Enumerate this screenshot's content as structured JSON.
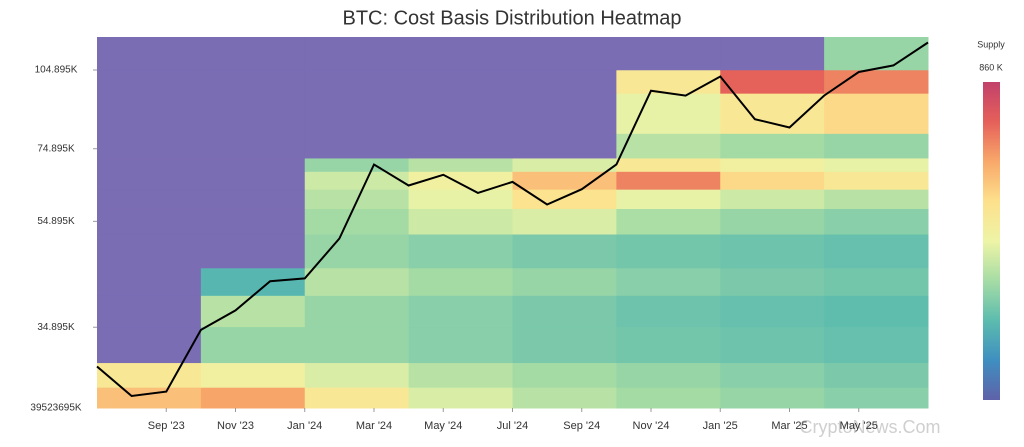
{
  "chart_data": {
    "type": "heatmap",
    "title": "BTC: Cost Basis Distribution Heatmap",
    "log_y": true,
    "xlim": [
      "2023-07",
      "2025-07"
    ],
    "ylim": [
      24700,
      120800
    ],
    "yticks": [
      {
        "value": 34895,
        "label": "34.895K"
      },
      {
        "value": 54895,
        "label": "54.895K"
      },
      {
        "value": 74895,
        "label": "74.895K"
      },
      {
        "value": 104895,
        "label": "104.895K"
      }
    ],
    "y_bottom_label": "39523695K",
    "xticks": [
      {
        "value": "2023-09",
        "label": "Sep '23"
      },
      {
        "value": "2023-11",
        "label": "Nov '23"
      },
      {
        "value": "2024-01",
        "label": "Jan '24"
      },
      {
        "value": "2024-03",
        "label": "Mar '24"
      },
      {
        "value": "2024-05",
        "label": "May '24"
      },
      {
        "value": "2024-07",
        "label": "Jul '24"
      },
      {
        "value": "2024-09",
        "label": "Sep '24"
      },
      {
        "value": "2024-11",
        "label": "Nov '24"
      },
      {
        "value": "2025-01",
        "label": "Jan '25"
      },
      {
        "value": "2025-03",
        "label": "Mar '25"
      },
      {
        "value": "2025-05",
        "label": "May '25"
      }
    ],
    "columns": [
      "2023-07",
      "2023-10",
      "2024-01",
      "2024-04",
      "2024-07",
      "2024-10",
      "2025-01",
      "2025-04"
    ],
    "y_edges": [
      24700,
      27000,
      30000,
      35000,
      40000,
      45000,
      52000,
      58000,
      63000,
      68000,
      72000,
      80000,
      95000,
      105000,
      120800
    ],
    "z": [
      [
        600,
        650,
        500,
        400,
        350,
        320,
        300,
        280
      ],
      [
        500,
        450,
        400,
        350,
        320,
        300,
        280,
        260
      ],
      [
        0,
        300,
        300,
        280,
        260,
        250,
        240,
        230
      ],
      [
        0,
        350,
        300,
        280,
        260,
        240,
        230,
        220
      ],
      [
        0,
        200,
        350,
        320,
        300,
        280,
        260,
        250
      ],
      [
        0,
        0,
        300,
        280,
        260,
        250,
        240,
        230
      ],
      [
        0,
        0,
        320,
        380,
        400,
        330,
        300,
        280
      ],
      [
        0,
        0,
        350,
        420,
        520,
        420,
        380,
        350
      ],
      [
        0,
        0,
        380,
        450,
        600,
        700,
        550,
        500
      ],
      [
        0,
        0,
        300,
        350,
        400,
        500,
        450,
        420
      ],
      [
        0,
        0,
        0,
        0,
        0,
        350,
        320,
        300
      ],
      [
        0,
        0,
        0,
        0,
        0,
        420,
        500,
        550
      ],
      [
        0,
        0,
        0,
        0,
        0,
        500,
        750,
        700
      ],
      [
        0,
        0,
        0,
        0,
        0,
        0,
        0,
        300
      ]
    ],
    "empty_color": "#7b6db4",
    "colorscale": [
      "#5e62a8",
      "#3f8fc0",
      "#5cbcae",
      "#a6dca5",
      "#eef4a6",
      "#fde08c",
      "#f8a86a",
      "#e5605a",
      "#c2416b"
    ],
    "colorbar_title": "Supply",
    "zmax": {
      "value": 860,
      "label": "860 K"
    },
    "price": {
      "color": "#000000",
      "x": [
        "2023-07",
        "2023-08",
        "2023-09",
        "2023-10",
        "2023-11",
        "2023-12",
        "2024-01",
        "2024-02",
        "2024-03",
        "2024-04",
        "2024-05",
        "2024-06",
        "2024-07",
        "2024-08",
        "2024-09",
        "2024-10",
        "2024-11",
        "2024-12",
        "2025-01",
        "2025-02",
        "2025-03",
        "2025-04",
        "2025-05",
        "2025-06",
        "2025-07"
      ],
      "values": [
        29500,
        26000,
        26500,
        34500,
        37500,
        42500,
        43000,
        51000,
        70000,
        64000,
        67000,
        62000,
        65000,
        59000,
        63000,
        70000,
        96000,
        94000,
        102000,
        85000,
        82000,
        94000,
        104000,
        107000,
        118000
      ]
    },
    "watermark": "CryptoNews.Com"
  }
}
